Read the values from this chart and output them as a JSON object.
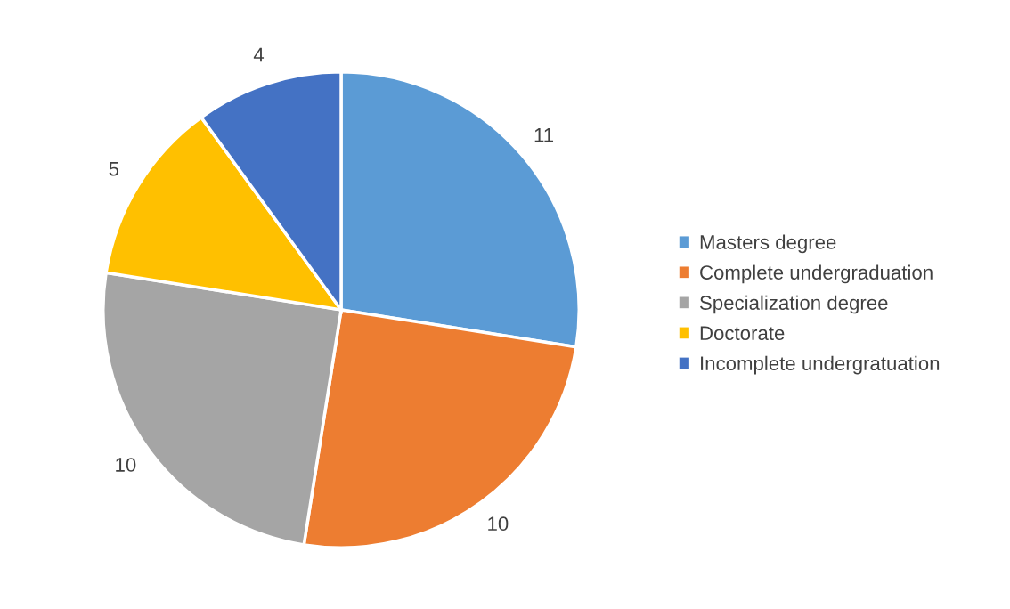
{
  "chart_data": {
    "type": "pie",
    "categories": [
      "Masters degree",
      "Complete undergraduation",
      "Specialization degree",
      "Doctorate",
      "Incomplete undergratuation"
    ],
    "values": [
      11,
      10,
      10,
      5,
      4
    ],
    "colors": [
      "#5b9bd5",
      "#ed7d31",
      "#a5a5a5",
      "#ffc000",
      "#4472c4"
    ],
    "data_labels": true,
    "legend": "right"
  }
}
